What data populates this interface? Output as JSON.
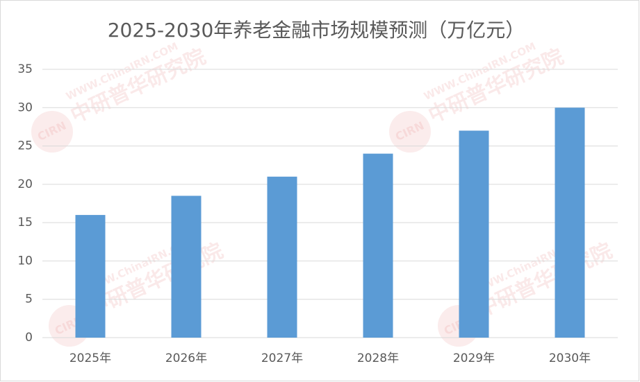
{
  "chart_data": {
    "type": "bar",
    "title": "2025-2030年养老金融市场规模预测（万亿元）",
    "categories": [
      "2025年",
      "2026年",
      "2027年",
      "2028年",
      "2029年",
      "2030年"
    ],
    "values": [
      16,
      18.5,
      21,
      24,
      27,
      30
    ],
    "color": "#5b9bd5",
    "ylim": [
      0,
      35
    ],
    "yticks": [
      0,
      5,
      10,
      15,
      20,
      25,
      30,
      35
    ],
    "grid": true,
    "watermark": {
      "logo": "CIRN",
      "url": "WWW.ChinaIRN.COM",
      "name": "中研普华研究院"
    }
  }
}
